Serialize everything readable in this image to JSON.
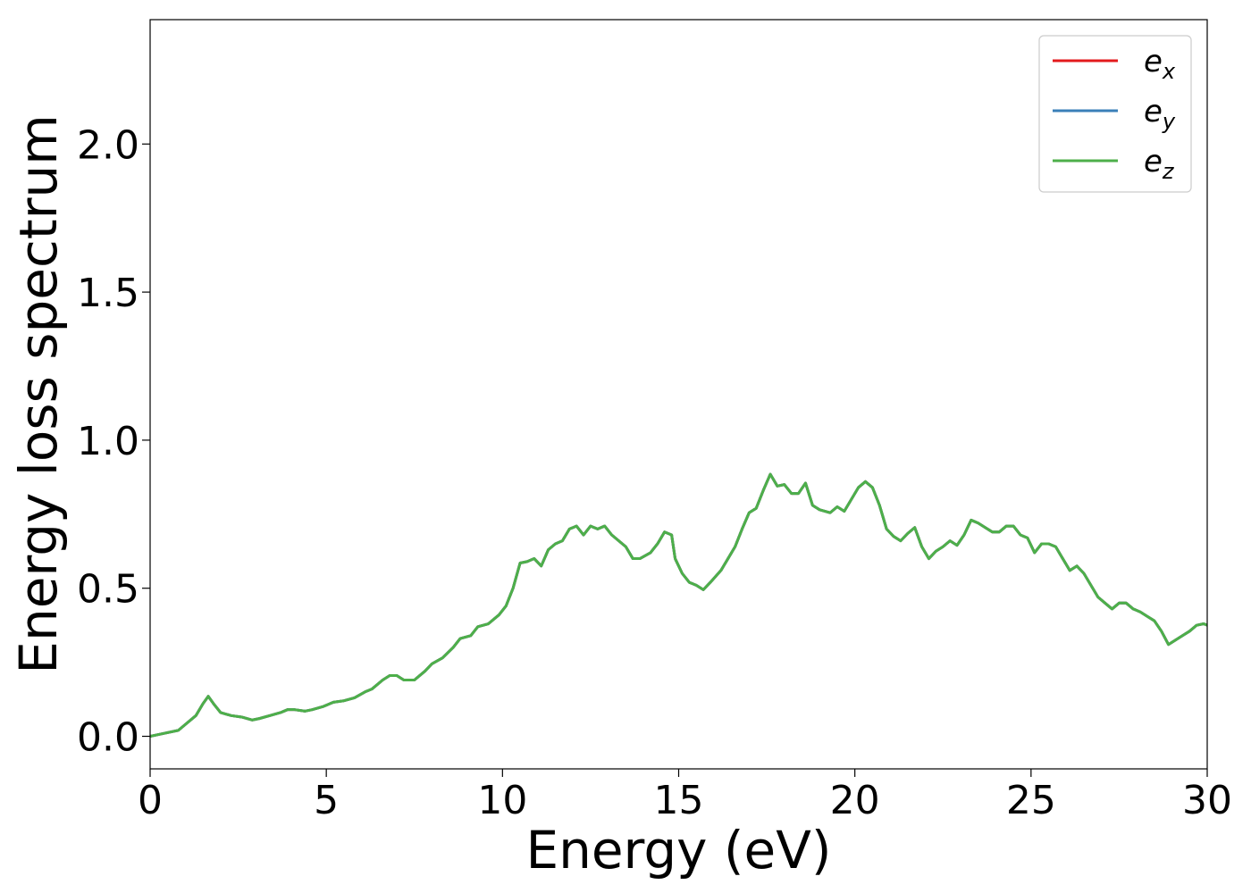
{
  "chart_data": {
    "type": "line",
    "title": "",
    "xlabel": "Energy (eV)",
    "ylabel": "Energy loss spectrum",
    "xlim": [
      0,
      30
    ],
    "ylim": [
      -0.11,
      2.42
    ],
    "xticks": [
      0,
      5,
      10,
      15,
      20,
      25,
      30
    ],
    "xtick_labels": [
      "0",
      "5",
      "10",
      "15",
      "20",
      "25",
      "30"
    ],
    "yticks": [
      0.0,
      0.5,
      1.0,
      1.5,
      2.0
    ],
    "ytick_labels": [
      "0.0",
      "0.5",
      "1.0",
      "1.5",
      "2.0"
    ],
    "grid": false,
    "legend_position": "top-right",
    "x": [
      0,
      0.4,
      0.8,
      1.0,
      1.3,
      1.5,
      1.65,
      1.8,
      2.0,
      2.3,
      2.6,
      2.9,
      3.1,
      3.4,
      3.7,
      3.9,
      4.1,
      4.4,
      4.6,
      4.9,
      5.2,
      5.5,
      5.8,
      6.1,
      6.3,
      6.6,
      6.8,
      7.0,
      7.2,
      7.5,
      7.8,
      8.0,
      8.3,
      8.6,
      8.8,
      9.1,
      9.3,
      9.6,
      9.9,
      10.1,
      10.3,
      10.5,
      10.7,
      10.9,
      11.1,
      11.3,
      11.5,
      11.7,
      11.9,
      12.1,
      12.3,
      12.5,
      12.7,
      12.9,
      13.1,
      13.3,
      13.5,
      13.7,
      13.9,
      14.2,
      14.4,
      14.6,
      14.8,
      14.9,
      15.1,
      15.3,
      15.5,
      15.7,
      15.9,
      16.2,
      16.4,
      16.6,
      16.8,
      17.0,
      17.2,
      17.4,
      17.6,
      17.8,
      18.0,
      18.2,
      18.4,
      18.6,
      18.8,
      19.0,
      19.3,
      19.5,
      19.7,
      19.9,
      20.1,
      20.3,
      20.5,
      20.7,
      20.9,
      21.1,
      21.3,
      21.5,
      21.7,
      21.9,
      22.1,
      22.3,
      22.5,
      22.7,
      22.9,
      23.1,
      23.3,
      23.5,
      23.7,
      23.9,
      24.1,
      24.3,
      24.5,
      24.7,
      24.9,
      25.1,
      25.3,
      25.5,
      25.7,
      25.9,
      26.1,
      26.3,
      26.5,
      26.7,
      26.9,
      27.1,
      27.3,
      27.5,
      27.7,
      27.9,
      28.1,
      28.3,
      28.5,
      28.7,
      28.9,
      29.1,
      29.3,
      29.5,
      29.7,
      29.9,
      30.0
    ],
    "series": [
      {
        "name": "e_x",
        "label_base": "e",
        "label_sub": "x",
        "color": "#e31a1c",
        "values": [
          0.0,
          0.01,
          0.02,
          0.04,
          0.07,
          0.11,
          0.135,
          0.11,
          0.08,
          0.07,
          0.065,
          0.055,
          0.06,
          0.07,
          0.08,
          0.09,
          0.09,
          0.085,
          0.09,
          0.1,
          0.115,
          0.12,
          0.13,
          0.15,
          0.16,
          0.19,
          0.205,
          0.205,
          0.19,
          0.19,
          0.22,
          0.245,
          0.265,
          0.3,
          0.33,
          0.34,
          0.37,
          0.38,
          0.41,
          0.44,
          0.5,
          0.585,
          0.59,
          0.6,
          0.575,
          0.63,
          0.65,
          0.66,
          0.7,
          0.71,
          0.68,
          0.71,
          0.7,
          0.71,
          0.68,
          0.66,
          0.64,
          0.6,
          0.6,
          0.62,
          0.65,
          0.69,
          0.68,
          0.6,
          0.55,
          0.52,
          0.51,
          0.495,
          0.52,
          0.56,
          0.6,
          0.64,
          0.7,
          0.755,
          0.77,
          0.83,
          0.885,
          0.845,
          0.85,
          0.82,
          0.82,
          0.855,
          0.78,
          0.765,
          0.755,
          0.775,
          0.76,
          0.8,
          0.84,
          0.86,
          0.84,
          0.78,
          0.7,
          0.675,
          0.66,
          0.685,
          0.705,
          0.64,
          0.6,
          0.625,
          0.64,
          0.66,
          0.645,
          0.68,
          0.73,
          0.72,
          0.705,
          0.69,
          0.69,
          0.71,
          0.71,
          0.68,
          0.67,
          0.62,
          0.65,
          0.65,
          0.64,
          0.6,
          0.56,
          0.575,
          0.55,
          0.51,
          0.47,
          0.45,
          0.43,
          0.45,
          0.45,
          0.43,
          0.42,
          0.405,
          0.39,
          0.355,
          0.31,
          0.325,
          0.34,
          0.355,
          0.375,
          0.38,
          0.375
        ]
      },
      {
        "name": "e_y",
        "label_base": "e",
        "label_sub": "y",
        "color": "#3a7fb8",
        "values": [
          0.0,
          0.01,
          0.02,
          0.04,
          0.07,
          0.11,
          0.135,
          0.11,
          0.08,
          0.07,
          0.065,
          0.055,
          0.06,
          0.07,
          0.08,
          0.09,
          0.09,
          0.085,
          0.09,
          0.1,
          0.115,
          0.12,
          0.13,
          0.15,
          0.16,
          0.19,
          0.205,
          0.205,
          0.19,
          0.19,
          0.22,
          0.245,
          0.265,
          0.3,
          0.33,
          0.34,
          0.37,
          0.38,
          0.41,
          0.44,
          0.5,
          0.585,
          0.59,
          0.6,
          0.575,
          0.63,
          0.65,
          0.66,
          0.7,
          0.71,
          0.68,
          0.71,
          0.7,
          0.71,
          0.68,
          0.66,
          0.64,
          0.6,
          0.6,
          0.62,
          0.65,
          0.69,
          0.68,
          0.6,
          0.55,
          0.52,
          0.51,
          0.495,
          0.52,
          0.56,
          0.6,
          0.64,
          0.7,
          0.755,
          0.77,
          0.83,
          0.885,
          0.845,
          0.85,
          0.82,
          0.82,
          0.855,
          0.78,
          0.765,
          0.755,
          0.775,
          0.76,
          0.8,
          0.84,
          0.86,
          0.84,
          0.78,
          0.7,
          0.675,
          0.66,
          0.685,
          0.705,
          0.64,
          0.6,
          0.625,
          0.64,
          0.66,
          0.645,
          0.68,
          0.73,
          0.72,
          0.705,
          0.69,
          0.69,
          0.71,
          0.71,
          0.68,
          0.67,
          0.62,
          0.65,
          0.65,
          0.64,
          0.6,
          0.56,
          0.575,
          0.55,
          0.51,
          0.47,
          0.45,
          0.43,
          0.45,
          0.45,
          0.43,
          0.42,
          0.405,
          0.39,
          0.355,
          0.31,
          0.325,
          0.34,
          0.355,
          0.375,
          0.38,
          0.375
        ]
      },
      {
        "name": "e_z",
        "label_base": "e",
        "label_sub": "z",
        "color": "#4daf4a",
        "values": [
          0.0,
          0.01,
          0.02,
          0.04,
          0.07,
          0.11,
          0.135,
          0.11,
          0.08,
          0.07,
          0.065,
          0.055,
          0.06,
          0.07,
          0.08,
          0.09,
          0.09,
          0.085,
          0.09,
          0.1,
          0.115,
          0.12,
          0.13,
          0.15,
          0.16,
          0.19,
          0.205,
          0.205,
          0.19,
          0.19,
          0.22,
          0.245,
          0.265,
          0.3,
          0.33,
          0.34,
          0.37,
          0.38,
          0.41,
          0.44,
          0.5,
          0.585,
          0.59,
          0.6,
          0.575,
          0.63,
          0.65,
          0.66,
          0.7,
          0.71,
          0.68,
          0.71,
          0.7,
          0.71,
          0.68,
          0.66,
          0.64,
          0.6,
          0.6,
          0.62,
          0.65,
          0.69,
          0.68,
          0.6,
          0.55,
          0.52,
          0.51,
          0.495,
          0.52,
          0.56,
          0.6,
          0.64,
          0.7,
          0.755,
          0.77,
          0.83,
          0.885,
          0.845,
          0.85,
          0.82,
          0.82,
          0.855,
          0.78,
          0.765,
          0.755,
          0.775,
          0.76,
          0.8,
          0.84,
          0.86,
          0.84,
          0.78,
          0.7,
          0.675,
          0.66,
          0.685,
          0.705,
          0.64,
          0.6,
          0.625,
          0.64,
          0.66,
          0.645,
          0.68,
          0.73,
          0.72,
          0.705,
          0.69,
          0.69,
          0.71,
          0.71,
          0.68,
          0.67,
          0.62,
          0.65,
          0.65,
          0.64,
          0.6,
          0.56,
          0.575,
          0.55,
          0.51,
          0.47,
          0.45,
          0.43,
          0.45,
          0.45,
          0.43,
          0.42,
          0.405,
          0.39,
          0.355,
          0.31,
          0.325,
          0.34,
          0.355,
          0.375,
          0.38,
          0.375
        ]
      }
    ]
  }
}
